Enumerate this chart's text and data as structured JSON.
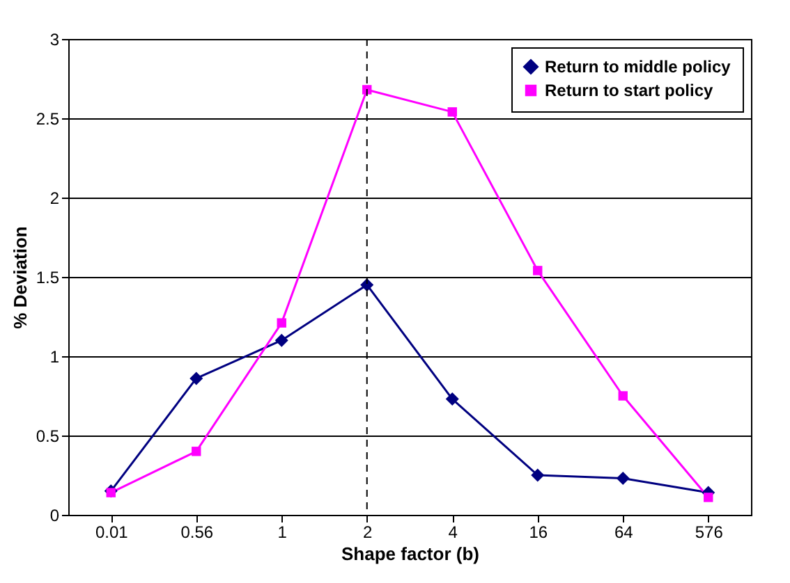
{
  "chart_data": {
    "type": "line",
    "xlabel": "Shape factor (b)",
    "ylabel": "% Deviation",
    "categories": [
      "0.01",
      "0.56",
      "1",
      "2",
      "4",
      "16",
      "64",
      "576"
    ],
    "series": [
      {
        "name": "Return to middle policy",
        "color": "#000080",
        "marker": "diamond",
        "values": [
          0.15,
          0.86,
          1.1,
          1.45,
          0.73,
          0.25,
          0.23,
          0.14
        ]
      },
      {
        "name": "Return to start policy",
        "color": "#ff00ff",
        "marker": "square",
        "values": [
          0.14,
          0.4,
          1.21,
          2.68,
          2.54,
          1.54,
          0.75,
          0.11
        ]
      }
    ],
    "ylim": [
      0,
      3
    ],
    "yticks": [
      0,
      0.5,
      1,
      1.5,
      2,
      2.5,
      3
    ],
    "grid": "y",
    "legend": "top right",
    "ref_lines": [
      {
        "axis": "x",
        "value": "2",
        "line_style": "dashed",
        "color": "#000000"
      }
    ]
  }
}
